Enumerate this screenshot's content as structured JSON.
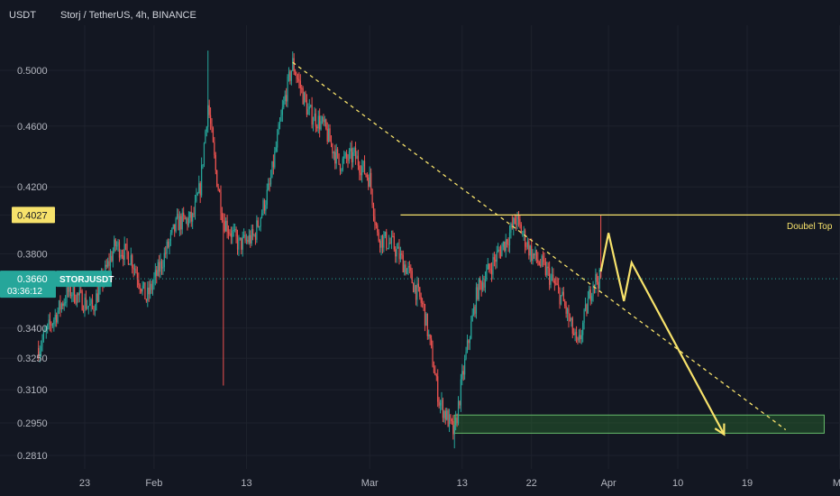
{
  "header": {
    "currency": "USDT",
    "symbol_title": "Storj / TetherUS, 4h, BINANCE"
  },
  "price_labels": {
    "current_price": "0.3660",
    "ticker": "STORJUSDT",
    "countdown": "03:36:12",
    "highlight_price": "0.4027"
  },
  "annotation": {
    "doubel_top": "Doubel Top"
  },
  "colors": {
    "background": "#131722",
    "grid": "#1e222d",
    "axis_text": "#b2b5be",
    "bull": "#26a69a",
    "bear": "#ef5350",
    "trend": "#f7e26b",
    "current_price": "#26a69a",
    "zone_fill": "#2e7d32",
    "zone_border": "#66bb6a"
  },
  "chart_data": {
    "type": "candlestick",
    "timeframe": "4h",
    "y_scale": "log",
    "y_ticks": [
      0.281,
      0.295,
      0.31,
      0.325,
      0.34,
      0.366,
      0.38,
      0.4027,
      0.42,
      0.46,
      0.5
    ],
    "y_tick_labels": [
      "0.2810",
      "0.2950",
      "0.3100",
      "0.3250",
      "0.3400",
      "0.3660",
      "0.3800",
      "0.4027",
      "0.4200",
      "0.4600",
      "0.5000"
    ],
    "x_ticks": [
      {
        "label": "23",
        "date": "2021-01-23"
      },
      {
        "label": "Feb",
        "date": "2021-02-01"
      },
      {
        "label": "13",
        "date": "2021-02-13"
      },
      {
        "label": "Mar",
        "date": "2021-03-01"
      },
      {
        "label": "13",
        "date": "2021-03-13"
      },
      {
        "label": "22",
        "date": "2021-03-22"
      },
      {
        "label": "Apr",
        "date": "2021-04-01"
      },
      {
        "label": "10",
        "date": "2021-04-10"
      },
      {
        "label": "19",
        "date": "2021-04-19"
      },
      {
        "label": "Ma",
        "date": "2021-05-01"
      }
    ],
    "anchor_closes": [
      {
        "date": "2021-01-17",
        "close": 0.33
      },
      {
        "date": "2021-01-21",
        "close": 0.36
      },
      {
        "date": "2021-01-24",
        "close": 0.35
      },
      {
        "date": "2021-01-27",
        "close": 0.385
      },
      {
        "date": "2021-01-29",
        "close": 0.378
      },
      {
        "date": "2021-01-31",
        "close": 0.355
      },
      {
        "date": "2021-02-02",
        "close": 0.375
      },
      {
        "date": "2021-02-04",
        "close": 0.398
      },
      {
        "date": "2021-02-06",
        "close": 0.4
      },
      {
        "date": "2021-02-07",
        "close": 0.42
      },
      {
        "date": "2021-02-08",
        "close": 0.475
      },
      {
        "date": "2021-02-09",
        "close": 0.43
      },
      {
        "date": "2021-02-10",
        "close": 0.4
      },
      {
        "date": "2021-02-12",
        "close": 0.385
      },
      {
        "date": "2021-02-14",
        "close": 0.39
      },
      {
        "date": "2021-02-16",
        "close": 0.42
      },
      {
        "date": "2021-02-18",
        "close": 0.48
      },
      {
        "date": "2021-02-19",
        "close": 0.505
      },
      {
        "date": "2021-02-21",
        "close": 0.47
      },
      {
        "date": "2021-02-23",
        "close": 0.46
      },
      {
        "date": "2021-02-25",
        "close": 0.435
      },
      {
        "date": "2021-02-27",
        "close": 0.44
      },
      {
        "date": "2021-03-01",
        "close": 0.425
      },
      {
        "date": "2021-03-02",
        "close": 0.39
      },
      {
        "date": "2021-03-04",
        "close": 0.385
      },
      {
        "date": "2021-03-06",
        "close": 0.37
      },
      {
        "date": "2021-03-08",
        "close": 0.35
      },
      {
        "date": "2021-03-10",
        "close": 0.305
      },
      {
        "date": "2021-03-12",
        "close": 0.29
      },
      {
        "date": "2021-03-13",
        "close": 0.315
      },
      {
        "date": "2021-03-15",
        "close": 0.36
      },
      {
        "date": "2021-03-17",
        "close": 0.375
      },
      {
        "date": "2021-03-19",
        "close": 0.39
      },
      {
        "date": "2021-03-20",
        "close": 0.4
      },
      {
        "date": "2021-03-22",
        "close": 0.38
      },
      {
        "date": "2021-03-24",
        "close": 0.37
      },
      {
        "date": "2021-03-26",
        "close": 0.355
      },
      {
        "date": "2021-03-28",
        "close": 0.33
      },
      {
        "date": "2021-03-30",
        "close": 0.365
      },
      {
        "date": "2021-03-31",
        "close": 0.366
      }
    ],
    "wick_spikes": [
      {
        "date": "2021-02-08",
        "high": 0.515
      },
      {
        "date": "2021-02-10",
        "low": 0.312
      },
      {
        "date": "2021-02-19",
        "high": 0.51
      },
      {
        "date": "2021-03-12",
        "low": 0.284
      },
      {
        "date": "2021-03-20",
        "high": 0.403
      },
      {
        "date": "2021-03-31",
        "high": 0.4027
      }
    ],
    "projection_path": [
      {
        "date": "2021-03-31",
        "price": 0.37
      },
      {
        "date": "2021-04-01",
        "price": 0.392
      },
      {
        "date": "2021-04-03",
        "price": 0.354
      },
      {
        "date": "2021-04-04",
        "price": 0.375
      },
      {
        "date": "2021-04-16",
        "price": 0.29
      }
    ],
    "trendline": {
      "from": {
        "date": "2021-02-19",
        "price": 0.506
      },
      "to": {
        "date": "2021-04-24",
        "price": 0.292
      }
    },
    "resistance": {
      "price": 0.4027,
      "from": "2021-03-05",
      "label": "Doubel Top"
    },
    "support_zone": {
      "low": 0.2905,
      "high": 0.2985,
      "from": "2021-03-12",
      "to": "2021-04-29"
    },
    "current_price": 0.366,
    "date_range": [
      "2021-01-15",
      "2021-05-01"
    ]
  }
}
